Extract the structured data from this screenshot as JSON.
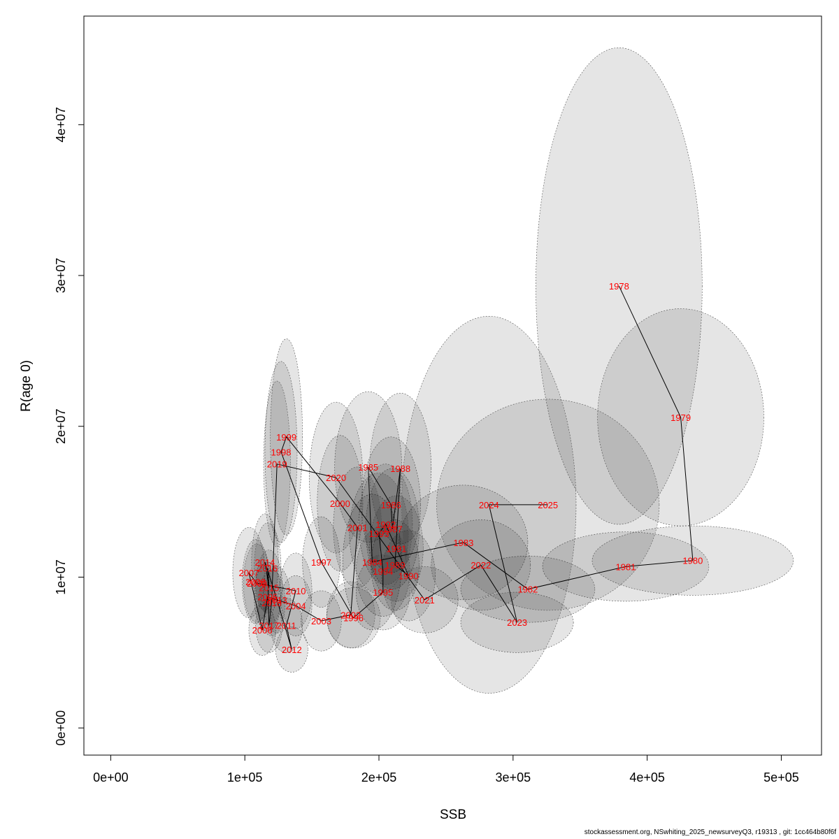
{
  "chart_data": {
    "type": "scatter",
    "xlabel": "SSB",
    "ylabel": "R(age 0)",
    "xlim": [
      -20000,
      530000
    ],
    "ylim": [
      -1800000,
      47200000
    ],
    "x_ticks": [
      0,
      100000,
      200000,
      300000,
      400000,
      500000
    ],
    "x_tick_labels": [
      "0e+00",
      "1e+05",
      "2e+05",
      "3e+05",
      "4e+05",
      "5e+05"
    ],
    "y_ticks": [
      0,
      10000000,
      20000000,
      30000000,
      40000000
    ],
    "y_tick_labels": [
      "0e+00",
      "1e+07",
      "2e+07",
      "3e+07",
      "4e+07"
    ],
    "grid": false,
    "colors": {
      "line": "#000000",
      "label": "#ff0000",
      "ellipse_fill": "#000000",
      "ellipse_stroke": "#555555"
    },
    "points": [
      {
        "year": "1978",
        "ssb": 379000,
        "rec": 29300000,
        "ex": 62000,
        "ey": 15800000
      },
      {
        "year": "1979",
        "ssb": 425000,
        "rec": 20600000,
        "ex": 62000,
        "ey": 7200000
      },
      {
        "year": "1980",
        "ssb": 434000,
        "rec": 11100000,
        "ex": 75000,
        "ey": 2300000
      },
      {
        "year": "1981",
        "ssb": 384000,
        "rec": 10700000,
        "ex": 62000,
        "ey": 2300000
      },
      {
        "year": "1982",
        "ssb": 311000,
        "rec": 9200000,
        "ex": 50000,
        "ey": 2200000
      },
      {
        "year": "1983",
        "ssb": 263000,
        "rec": 12300000,
        "ex": 48000,
        "ey": 3800000
      },
      {
        "year": "1984",
        "ssb": 195000,
        "rec": 11000000,
        "ex": 22000,
        "ey": 4500000
      },
      {
        "year": "1985",
        "ssb": 192000,
        "rec": 17300000,
        "ex": 25000,
        "ey": 5000000
      },
      {
        "year": "1986",
        "ssb": 209000,
        "rec": 14800000,
        "ex": 22000,
        "ey": 4500000
      },
      {
        "year": "1987",
        "ssb": 210000,
        "rec": 13200000,
        "ex": 20000,
        "ey": 4000000
      },
      {
        "year": "1988",
        "ssb": 216000,
        "rec": 17200000,
        "ex": 23000,
        "ey": 5000000
      },
      {
        "year": "1989",
        "ssb": 212000,
        "rec": 10800000,
        "ex": 18000,
        "ey": 3000000
      },
      {
        "year": "1990",
        "ssb": 222000,
        "rec": 10100000,
        "ex": 20000,
        "ey": 3000000
      },
      {
        "year": "1991",
        "ssb": 213000,
        "rec": 11900000,
        "ex": 20000,
        "ey": 3500000
      },
      {
        "year": "1992",
        "ssb": 205000,
        "rec": 13500000,
        "ex": 20000,
        "ey": 4000000
      },
      {
        "year": "1993",
        "ssb": 200000,
        "rec": 12900000,
        "ex": 22000,
        "ey": 4000000
      },
      {
        "year": "1994",
        "ssb": 203000,
        "rec": 10400000,
        "ex": 20000,
        "ey": 3000000
      },
      {
        "year": "1995",
        "ssb": 203000,
        "rec": 9000000,
        "ex": 20000,
        "ey": 2500000
      },
      {
        "year": "1996",
        "ssb": 181000,
        "rec": 7300000,
        "ex": 20000,
        "ey": 2000000
      },
      {
        "year": "1997",
        "ssb": 157000,
        "rec": 11000000,
        "ex": 14000,
        "ey": 3000000
      },
      {
        "year": "1998",
        "ssb": 127000,
        "rec": 18300000,
        "ex": 12000,
        "ey": 6000000
      },
      {
        "year": "1999",
        "ssb": 131000,
        "rec": 19300000,
        "ex": 12000,
        "ey": 6500000
      },
      {
        "year": "2000",
        "ssb": 171000,
        "rec": 14900000,
        "ex": 17000,
        "ey": 4500000
      },
      {
        "year": "2001",
        "ssb": 184000,
        "rec": 13300000,
        "ex": 18000,
        "ey": 4000000
      },
      {
        "year": "2002",
        "ssb": 179000,
        "rec": 7500000,
        "ex": 18000,
        "ey": 2200000
      },
      {
        "year": "2003",
        "ssb": 157000,
        "rec": 7100000,
        "ex": 15000,
        "ey": 2000000
      },
      {
        "year": "2004",
        "ssb": 138000,
        "rec": 8100000,
        "ex": 12000,
        "ey": 2000000
      },
      {
        "year": "2005",
        "ssb": 117000,
        "rec": 8700000,
        "ex": 10000,
        "ey": 2300000
      },
      {
        "year": "2006",
        "ssb": 113000,
        "rec": 6500000,
        "ex": 10000,
        "ey": 1700000
      },
      {
        "year": "2007",
        "ssb": 103000,
        "rec": 10300000,
        "ex": 12000,
        "ey": 3000000
      },
      {
        "year": "2008",
        "ssb": 108000,
        "rec": 9700000,
        "ex": 10000,
        "ey": 2800000
      },
      {
        "year": "2009",
        "ssb": 109000,
        "rec": 9600000,
        "ex": 10000,
        "ey": 2600000
      },
      {
        "year": "2010",
        "ssb": 138000,
        "rec": 9100000,
        "ex": 12000,
        "ey": 2500000
      },
      {
        "year": "2011",
        "ssb": 131000,
        "rec": 6800000,
        "ex": 12000,
        "ey": 1800000
      },
      {
        "year": "2012",
        "ssb": 135000,
        "rec": 5200000,
        "ex": 12000,
        "ey": 1500000
      },
      {
        "year": "2013",
        "ssb": 124000,
        "rec": 8500000,
        "ex": 10000,
        "ey": 2200000
      },
      {
        "year": "2014",
        "ssb": 115000,
        "rec": 11000000,
        "ex": 10000,
        "ey": 3200000
      },
      {
        "year": "2015",
        "ssb": 118000,
        "rec": 9300000,
        "ex": 10000,
        "ey": 2500000
      },
      {
        "year": "2016",
        "ssb": 117000,
        "rec": 10600000,
        "ex": 10000,
        "ey": 3000000
      },
      {
        "year": "2017",
        "ssb": 118000,
        "rec": 6800000,
        "ex": 10000,
        "ey": 1800000
      },
      {
        "year": "2018",
        "ssb": 120000,
        "rec": 8300000,
        "ex": 10000,
        "ey": 2200000
      },
      {
        "year": "2019",
        "ssb": 124000,
        "rec": 17500000,
        "ex": 10000,
        "ey": 5500000
      },
      {
        "year": "2020",
        "ssb": 168000,
        "rec": 16600000,
        "ex": 20000,
        "ey": 5000000
      },
      {
        "year": "2021",
        "ssb": 234000,
        "rec": 8500000,
        "ex": 25000,
        "ey": 2200000
      },
      {
        "year": "2022",
        "ssb": 276000,
        "rec": 10800000,
        "ex": 37000,
        "ey": 3000000
      },
      {
        "year": "2023",
        "ssb": 303000,
        "rec": 7000000,
        "ex": 42000,
        "ey": 2000000
      },
      {
        "year": "2024",
        "ssb": 282000,
        "rec": 14800000,
        "ex": 65000,
        "ey": 12500000
      },
      {
        "year": "2025",
        "ssb": 326000,
        "rec": 14800000,
        "ex": 83000,
        "ey": 7000000
      }
    ]
  },
  "footer": "stockassessment.org, NSwhiting_2025_newsurveyQ3, r19313 , git: 1cc464b80f6f"
}
